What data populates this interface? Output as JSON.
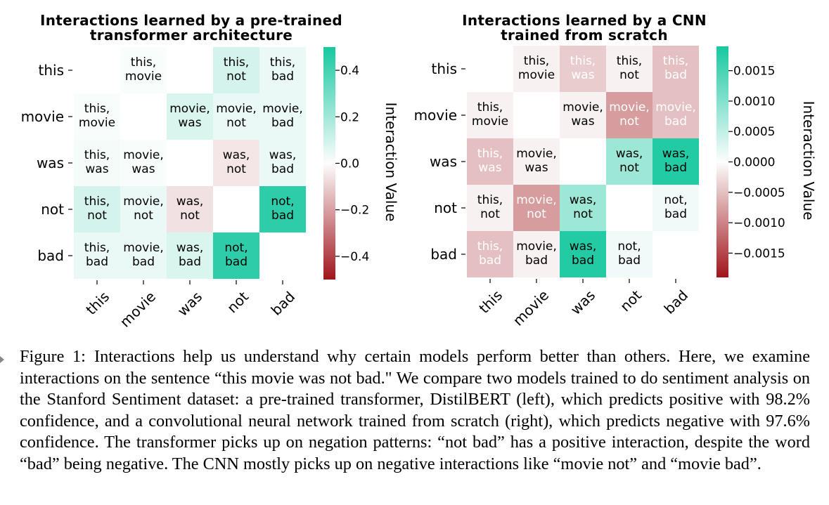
{
  "chart_data": [
    {
      "type": "heatmap",
      "title": "Interactions learned by a pre-trained transformer architecture",
      "title_lines": [
        "Interactions learned by a pre-trained",
        "transformer architecture"
      ],
      "rows": [
        "this",
        "movie",
        "was",
        "not",
        "bad"
      ],
      "cols": [
        "this",
        "movie",
        "was",
        "not",
        "bad"
      ],
      "cell_labels": [
        [
          "",
          "this,\nmovie",
          "",
          "this,\nnot",
          "this,\nbad"
        ],
        [
          "this,\nmovie",
          "",
          "movie,\nwas",
          "movie,\nnot",
          "movie,\nbad"
        ],
        [
          "this,\nwas",
          "movie,\nwas",
          "",
          "was,\nnot",
          "was,\nbad"
        ],
        [
          "this,\nnot",
          "movie,\nnot",
          "was,\nnot",
          "",
          "not,\nbad"
        ],
        [
          "this,\nbad",
          "movie,\nbad",
          "was,\nbad",
          "not,\nbad",
          ""
        ]
      ],
      "values": [
        [
          null,
          0.01,
          null,
          0.09,
          0.04
        ],
        [
          0.01,
          null,
          0.08,
          0.04,
          0.04
        ],
        [
          0.02,
          0.01,
          null,
          -0.05,
          0.04
        ],
        [
          0.09,
          0.04,
          -0.06,
          null,
          0.45
        ],
        [
          0.04,
          0.04,
          0.08,
          0.45,
          null
        ]
      ],
      "vmin": -0.5,
      "vmax": 0.5,
      "colorbar": {
        "ticks": [
          0.4,
          0.2,
          0.0,
          -0.2,
          -0.4
        ],
        "tick_labels": [
          "0.4",
          "0.2",
          "0.0",
          "−0.2",
          "−0.4"
        ],
        "label": "Interaction Value"
      },
      "colors": {
        "negative": "#a0161c",
        "neutral": "#fdfdfd",
        "positive": "#17c8a0"
      }
    },
    {
      "type": "heatmap",
      "title": "Interactions learned by a CNN trained from scratch",
      "title_lines": [
        "Interactions learned by a CNN",
        "trained from scratch"
      ],
      "rows": [
        "this",
        "movie",
        "was",
        "not",
        "bad"
      ],
      "cols": [
        "this",
        "movie",
        "was",
        "not",
        "bad"
      ],
      "cell_labels": [
        [
          "",
          "this,\nmovie",
          "this,\nwas",
          "this,\nnot",
          "this,\nbad"
        ],
        [
          "this,\nmovie",
          "",
          "movie,\nwas",
          "movie,\nnot",
          "movie,\nbad"
        ],
        [
          "this,\nwas",
          "movie,\nwas",
          "",
          "was,\nnot",
          "was,\nbad"
        ],
        [
          "this,\nnot",
          "movie,\nnot",
          "was,\nnot",
          "",
          "not,\nbad"
        ],
        [
          "this,\nbad",
          "movie,\nbad",
          "was,\nbad",
          "not,\nbad",
          ""
        ]
      ],
      "values": [
        [
          null,
          -0.0001,
          -0.0004,
          -0.0001,
          -0.0005
        ],
        [
          -0.0001,
          null,
          -0.0001,
          -0.0008,
          -0.0005
        ],
        [
          -0.0005,
          -0.0001,
          null,
          0.0008,
          0.0018
        ],
        [
          -0.0001,
          -0.0008,
          0.0008,
          null,
          0.0001
        ],
        [
          -0.0005,
          -0.0001,
          0.0018,
          0.0001,
          null
        ]
      ],
      "vmin": -0.0019,
      "vmax": 0.0019,
      "colorbar": {
        "ticks": [
          0.0015,
          0.001,
          0.0005,
          0.0,
          -0.0005,
          -0.001,
          -0.0015
        ],
        "tick_labels": [
          "0.0015",
          "0.0010",
          "0.0005",
          "0.0000",
          "−0.0005",
          "−0.0010",
          "−0.0015"
        ],
        "label": "Interaction Value"
      },
      "colors": {
        "negative": "#a0161c",
        "neutral": "#fdfdfd",
        "positive": "#17c8a0"
      }
    }
  ],
  "caption": "Figure 1: Interactions help us understand why certain models perform better than others. Here, we examine interactions on the sentence “this movie was not bad.\" We compare two models trained to do sentiment analysis on the Stanford Sentiment dataset: a pre-trained transformer, DistilBERT (left), which predicts positive with 98.2% confidence, and a convolutional neural network trained from scratch (right), which predicts negative with 97.6% confidence. The transformer picks up on negation patterns: “not bad” has a positive interaction, despite the word “bad” being negative. The CNN mostly picks up on negative interactions like “movie not” and “movie bad”."
}
